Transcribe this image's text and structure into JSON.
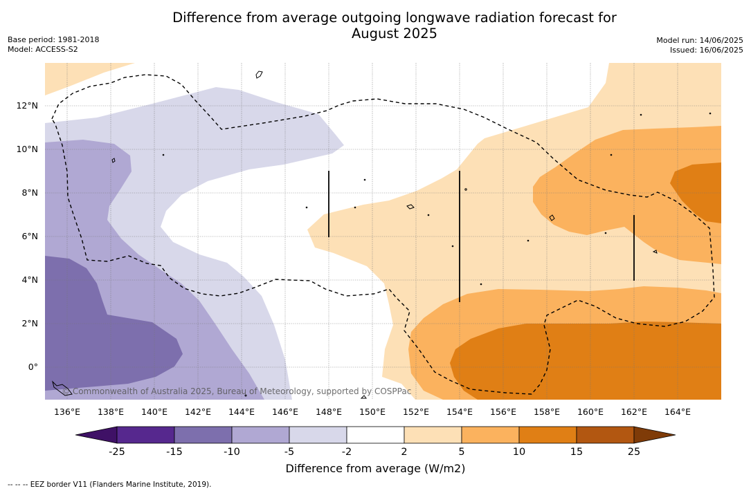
{
  "title_line1": "Difference from average outgoing longwave radiation forecast for",
  "title_line2": "August 2025",
  "meta_left": {
    "base_period": "Base period: 1981-2018",
    "model": "Model: ACCESS-S2"
  },
  "meta_right": {
    "model_run": "Model run: 14/06/2025",
    "issued": "Issued: 16/06/2025"
  },
  "map": {
    "lon_ticks": [
      "136°E",
      "138°E",
      "140°E",
      "142°E",
      "144°E",
      "146°E",
      "148°E",
      "150°E",
      "152°E",
      "154°E",
      "156°E",
      "158°E",
      "160°E",
      "162°E",
      "164°E"
    ],
    "lat_ticks": [
      "12°N",
      "10°N",
      "8°N",
      "6°N",
      "4°N",
      "2°N",
      "0°"
    ],
    "copyright": "© Commonwealth of Australia 2025, Bureau of Meteorology, supported by COSPPac"
  },
  "colorbar": {
    "tick_labels": [
      "-25",
      "-15",
      "-10",
      "-5",
      "-2",
      "2",
      "5",
      "10",
      "15",
      "25"
    ],
    "colors": [
      "#3f1166",
      "#56288e",
      "#7d6fad",
      "#b0a8d3",
      "#d8d8ea",
      "#ffffff",
      "#fde0b6",
      "#fbb25e",
      "#e07f15",
      "#b25711",
      "#7f3b08"
    ],
    "label": "Difference from average (W/m2)"
  },
  "footnote": "--  --  -- EEZ border V11 (Flanders Marine Institute, 2019)."
}
